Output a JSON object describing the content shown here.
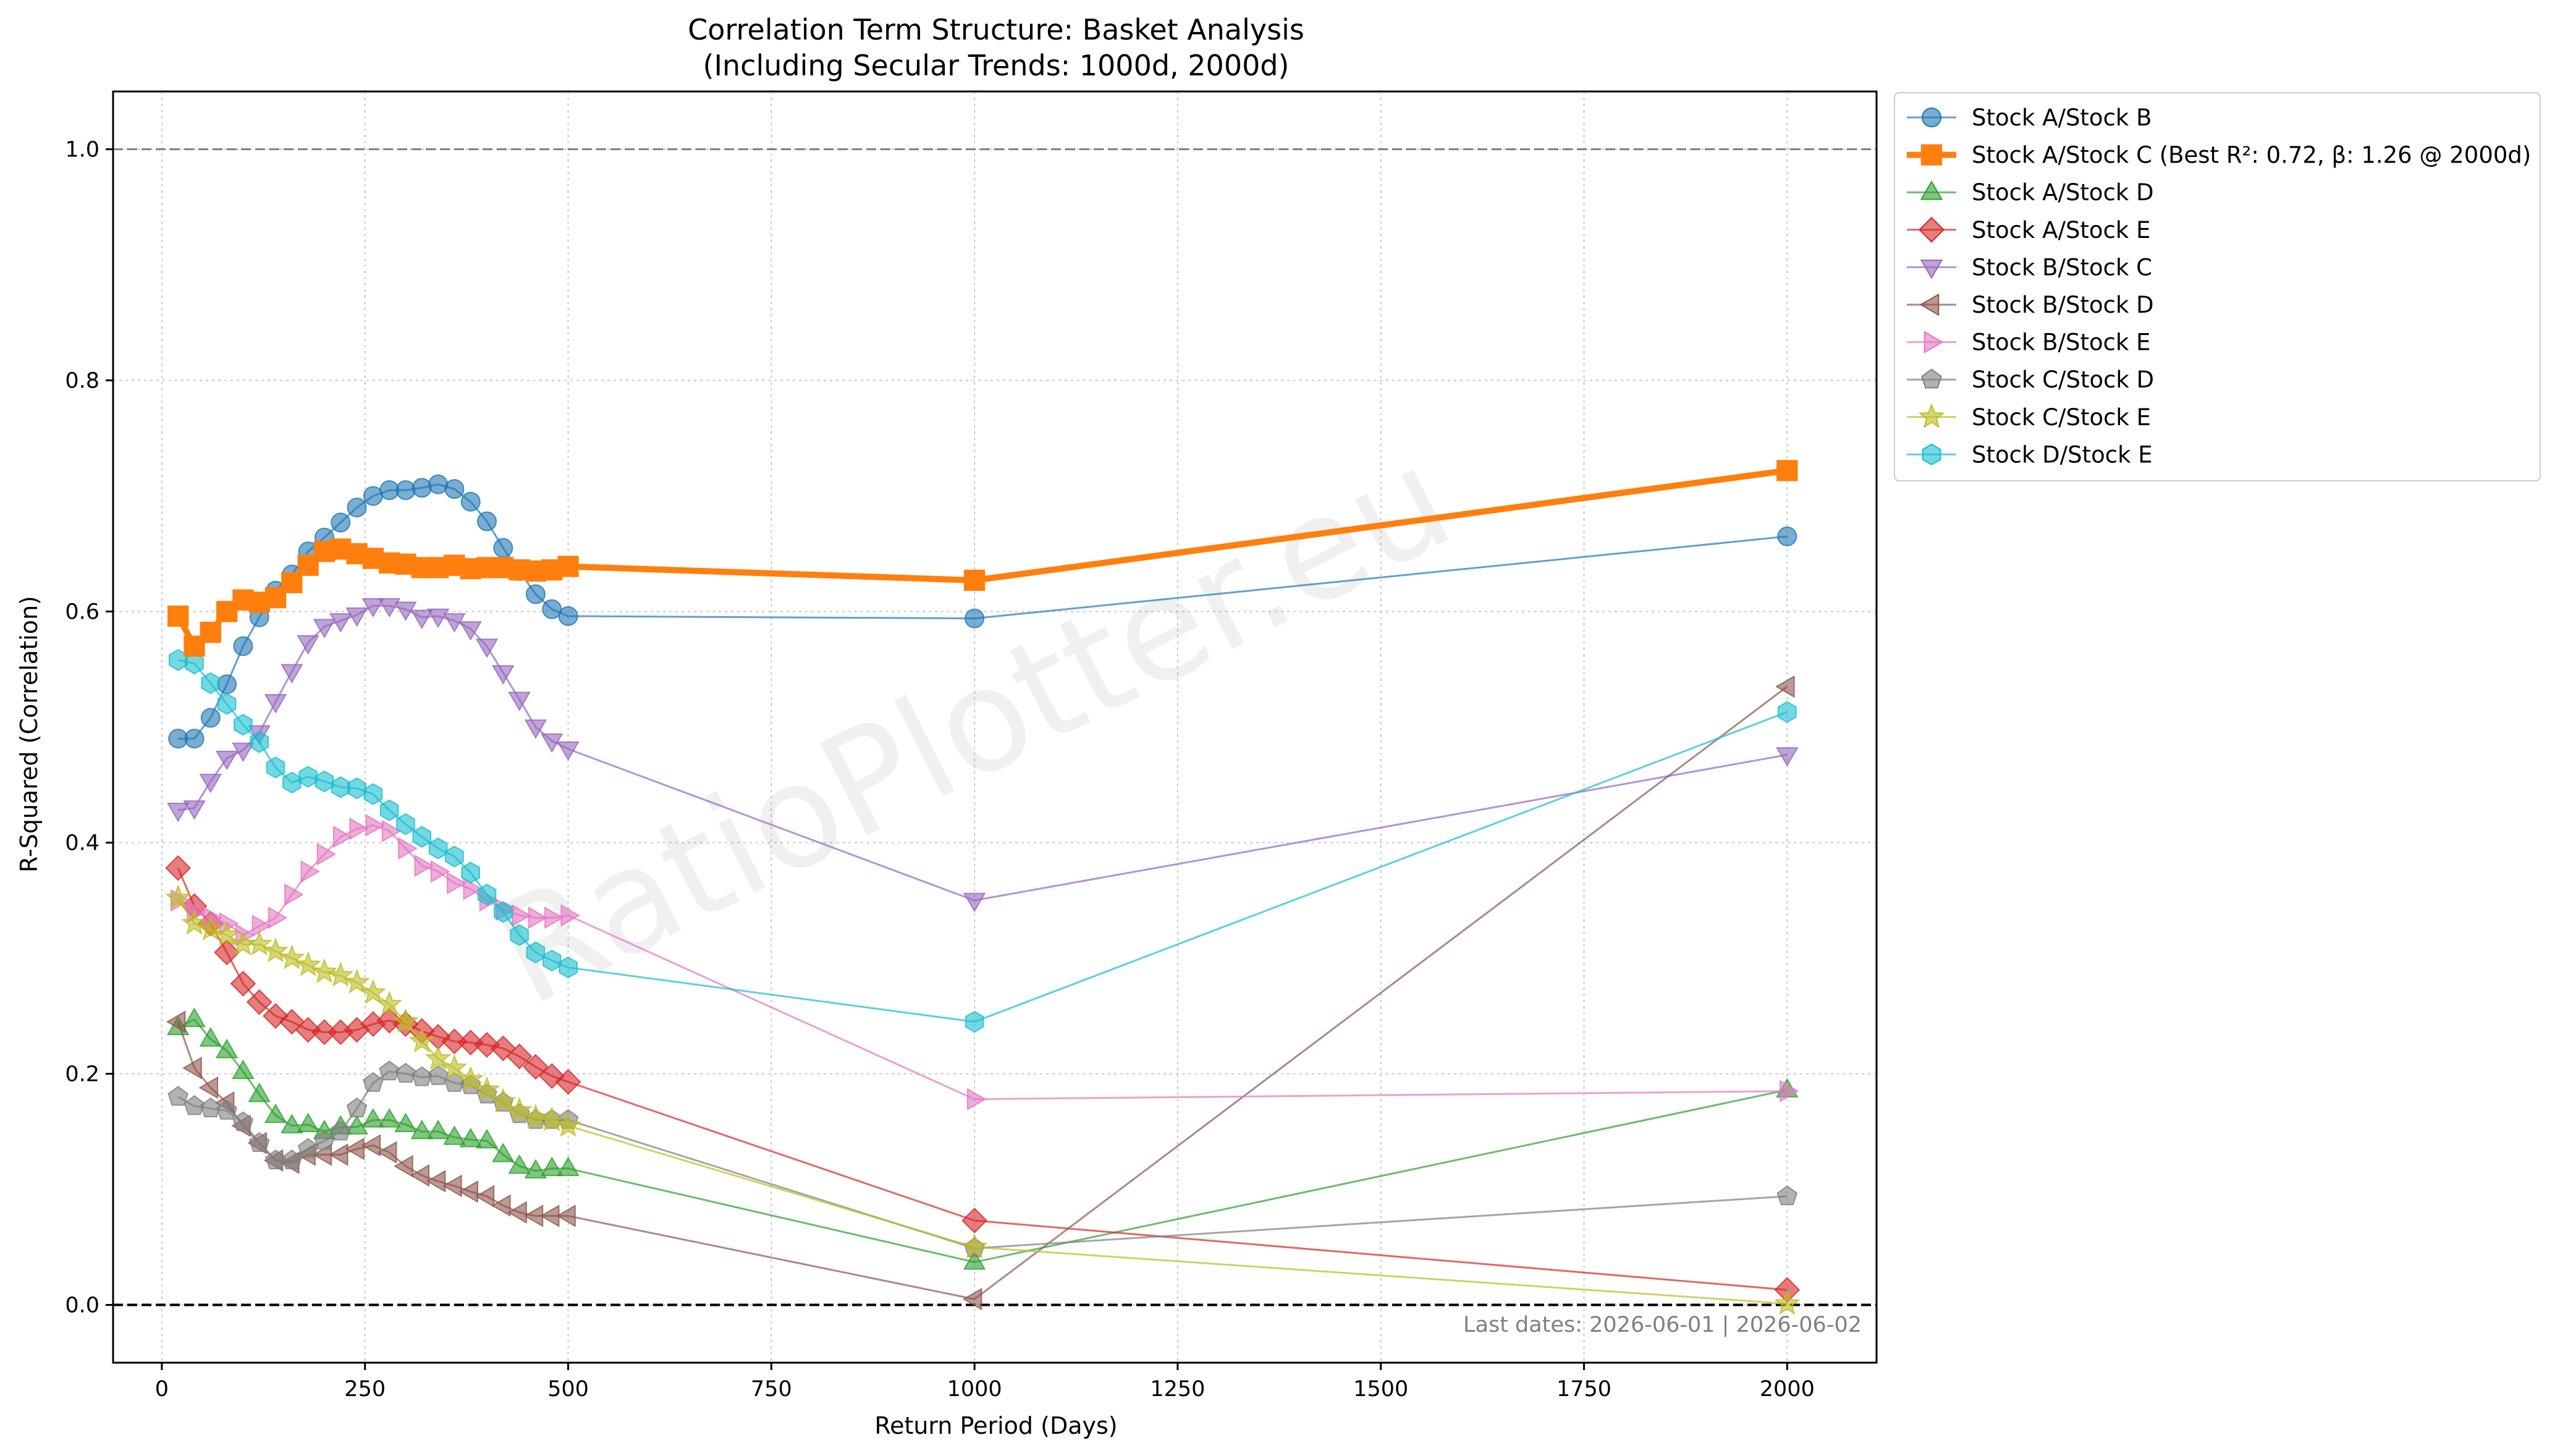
{
  "chart_data": {
    "type": "line",
    "title": "Correlation Term Structure: Basket Analysis",
    "subtitle": "(Including Secular Trends: 1000d, 2000d)",
    "xlabel": "Return Period (Days)",
    "ylabel": "R-Squared (Correlation)",
    "xlim": [
      -60,
      2110
    ],
    "ylim": [
      -0.05,
      1.05
    ],
    "xticks": [
      0,
      250,
      500,
      750,
      1000,
      1250,
      1500,
      1750,
      2000
    ],
    "yticks": [
      0.0,
      0.2,
      0.4,
      0.6,
      0.8,
      1.0
    ],
    "xtick_labels": [
      "0",
      "250",
      "500",
      "750",
      "1000",
      "1250",
      "1500",
      "1750",
      "2000"
    ],
    "ytick_labels": [
      "0.0",
      "0.2",
      "0.4",
      "0.6",
      "0.8",
      "1.0"
    ],
    "grid": true,
    "reference_lines": [
      1.0,
      0.0
    ],
    "legend_position": "outside-upper-right",
    "watermark": "RatioPlotter.eu",
    "footnote": "Last dates: 2026-06-01 | 2026-06-02",
    "x": [
      20,
      40,
      60,
      80,
      100,
      120,
      140,
      160,
      180,
      200,
      220,
      240,
      260,
      280,
      300,
      320,
      340,
      360,
      380,
      400,
      420,
      440,
      460,
      480,
      500,
      1000,
      2000
    ],
    "series": [
      {
        "name": "Stock A/Stock B",
        "color": "#1f77b4",
        "marker": "circle",
        "highlight": false,
        "values": [
          0.49,
          0.49,
          0.508,
          0.537,
          0.57,
          0.595,
          0.618,
          0.632,
          0.652,
          0.664,
          0.677,
          0.69,
          0.7,
          0.705,
          0.705,
          0.707,
          0.71,
          0.706,
          0.695,
          0.678,
          0.655,
          0.635,
          0.615,
          0.602,
          0.596,
          0.594,
          0.665
        ]
      },
      {
        "name": "Stock A/Stock C (Best R²: 0.72, β: 1.26 @ 2000d)",
        "color": "#ff7f0e",
        "marker": "square",
        "highlight": true,
        "values": [
          0.596,
          0.57,
          0.582,
          0.6,
          0.61,
          0.608,
          0.612,
          0.625,
          0.64,
          0.652,
          0.654,
          0.65,
          0.646,
          0.642,
          0.641,
          0.638,
          0.638,
          0.64,
          0.637,
          0.638,
          0.638,
          0.636,
          0.635,
          0.636,
          0.639,
          0.627,
          0.722
        ]
      },
      {
        "name": "Stock A/Stock D",
        "color": "#2ca02c",
        "marker": "triangle-up",
        "highlight": false,
        "values": [
          0.24,
          0.247,
          0.23,
          0.22,
          0.202,
          0.182,
          0.164,
          0.155,
          0.156,
          0.15,
          0.154,
          0.154,
          0.16,
          0.16,
          0.156,
          0.15,
          0.15,
          0.145,
          0.143,
          0.142,
          0.13,
          0.12,
          0.116,
          0.118,
          0.118,
          0.037,
          0.186
        ]
      },
      {
        "name": "Stock A/Stock E",
        "color": "#d62728",
        "marker": "diamond",
        "highlight": false,
        "values": [
          0.378,
          0.345,
          0.33,
          0.305,
          0.278,
          0.262,
          0.25,
          0.245,
          0.238,
          0.236,
          0.236,
          0.238,
          0.243,
          0.246,
          0.243,
          0.237,
          0.232,
          0.228,
          0.227,
          0.225,
          0.222,
          0.215,
          0.206,
          0.198,
          0.193,
          0.073,
          0.013
        ]
      },
      {
        "name": "Stock B/Stock C",
        "color": "#9467bd",
        "marker": "triangle-down",
        "highlight": false,
        "values": [
          0.428,
          0.43,
          0.453,
          0.473,
          0.48,
          0.495,
          0.522,
          0.548,
          0.573,
          0.587,
          0.592,
          0.597,
          0.605,
          0.605,
          0.602,
          0.595,
          0.596,
          0.592,
          0.585,
          0.57,
          0.547,
          0.524,
          0.5,
          0.488,
          0.481,
          0.35,
          0.476
        ]
      },
      {
        "name": "Stock B/Stock D",
        "color": "#8c564b",
        "marker": "triangle-left",
        "highlight": false,
        "values": [
          0.245,
          0.205,
          0.188,
          0.175,
          0.155,
          0.14,
          0.125,
          0.123,
          0.13,
          0.13,
          0.13,
          0.135,
          0.138,
          0.132,
          0.12,
          0.112,
          0.107,
          0.103,
          0.098,
          0.094,
          0.086,
          0.08,
          0.077,
          0.077,
          0.077,
          0.005,
          0.535
        ]
      },
      {
        "name": "Stock B/Stock E",
        "color": "#e377c2",
        "marker": "triangle-right",
        "highlight": false,
        "values": [
          0.35,
          0.34,
          0.335,
          0.33,
          0.32,
          0.328,
          0.335,
          0.355,
          0.375,
          0.39,
          0.405,
          0.412,
          0.415,
          0.41,
          0.395,
          0.38,
          0.375,
          0.365,
          0.36,
          0.35,
          0.342,
          0.337,
          0.335,
          0.335,
          0.337,
          0.178,
          0.185
        ]
      },
      {
        "name": "Stock C/Stock D",
        "color": "#7f7f7f",
        "marker": "pentagon",
        "highlight": false,
        "values": [
          0.18,
          0.172,
          0.17,
          0.168,
          0.158,
          0.14,
          0.125,
          0.125,
          0.135,
          0.142,
          0.15,
          0.17,
          0.192,
          0.202,
          0.2,
          0.197,
          0.198,
          0.192,
          0.19,
          0.182,
          0.175,
          0.165,
          0.16,
          0.16,
          0.16,
          0.049,
          0.094
        ]
      },
      {
        "name": "Stock C/Stock E",
        "color": "#bcbd22",
        "marker": "star",
        "highlight": false,
        "values": [
          0.352,
          0.33,
          0.325,
          0.32,
          0.312,
          0.312,
          0.306,
          0.3,
          0.294,
          0.288,
          0.285,
          0.279,
          0.27,
          0.26,
          0.245,
          0.228,
          0.213,
          0.205,
          0.195,
          0.186,
          0.176,
          0.168,
          0.162,
          0.16,
          0.155,
          0.05,
          0.001
        ]
      },
      {
        "name": "Stock D/Stock E",
        "color": "#17becf",
        "marker": "hexagon",
        "highlight": false,
        "values": [
          0.558,
          0.555,
          0.538,
          0.52,
          0.502,
          0.487,
          0.465,
          0.452,
          0.457,
          0.453,
          0.448,
          0.447,
          0.442,
          0.428,
          0.416,
          0.405,
          0.395,
          0.388,
          0.374,
          0.355,
          0.34,
          0.32,
          0.305,
          0.298,
          0.292,
          0.245,
          0.513
        ]
      }
    ]
  }
}
